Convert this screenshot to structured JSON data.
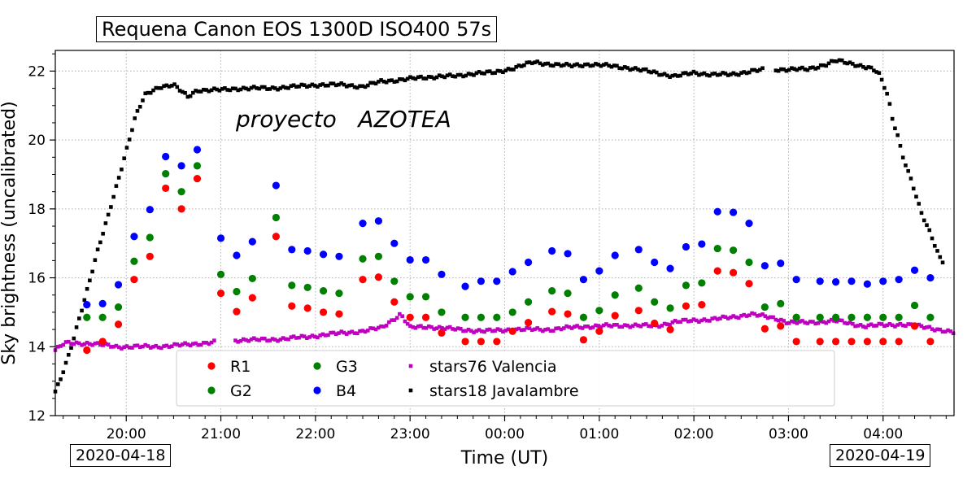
{
  "title": "Requena  Canon EOS 1300D  ISO400 57s",
  "watermark": "proyecto   AZOTEA",
  "date_start": "2020-04-18",
  "date_end": "2020-04-19",
  "chart_data": {
    "type": "scatter",
    "xlabel": "Time (UT)",
    "ylabel": "Sky brightness (uncalibrated)",
    "x_unit": "hours UT (values ≥ 24 are on 2020-04-19)",
    "xlim": [
      19.25,
      28.75
    ],
    "ylim": [
      12,
      22.6
    ],
    "x_ticks": [
      20,
      21,
      22,
      23,
      24,
      25,
      26,
      27,
      28
    ],
    "x_tick_labels": [
      "20:00",
      "21:00",
      "22:00",
      "23:00",
      "00:00",
      "01:00",
      "02:00",
      "03:00",
      "04:00"
    ],
    "y_ticks": [
      12,
      14,
      16,
      18,
      20,
      22
    ],
    "grid": true,
    "legend_position": "lower-center",
    "legend_columns": 4,
    "colors": {
      "R1": "#ff0000",
      "G2": "#008000",
      "G3": "#008000",
      "B4": "#0000ff",
      "stars76": "#c000c0",
      "stars18": "#000000"
    },
    "camera_times": [
      "19:35",
      "19:45",
      "19:55",
      "20:05",
      "20:15",
      "20:25",
      "20:35",
      "20:45",
      "21:00",
      "21:10",
      "21:20",
      "21:35",
      "21:45",
      "21:55",
      "22:05",
      "22:15",
      "22:30",
      "22:40",
      "22:50",
      "23:00",
      "23:10",
      "23:20",
      "23:35",
      "23:45",
      "23:55",
      "24:05",
      "24:15",
      "24:30",
      "24:40",
      "24:50",
      "25:00",
      "25:10",
      "25:25",
      "25:35",
      "25:45",
      "25:55",
      "26:05",
      "26:15",
      "26:25",
      "26:35",
      "26:45",
      "26:55",
      "27:05",
      "27:20",
      "27:30",
      "27:40",
      "27:50",
      "28:00",
      "28:10",
      "28:20",
      "28:30"
    ],
    "series": [
      {
        "name": "R1",
        "marker": "circle",
        "values": [
          13.9,
          14.15,
          14.65,
          15.95,
          16.62,
          18.6,
          18.0,
          18.88,
          15.55,
          15.02,
          15.42,
          17.2,
          15.18,
          15.12,
          15.0,
          14.95,
          15.95,
          16.02,
          15.3,
          14.85,
          14.85,
          14.4,
          14.15,
          14.15,
          14.15,
          14.45,
          14.7,
          15.02,
          14.95,
          14.2,
          14.45,
          14.9,
          15.05,
          14.68,
          14.5,
          15.18,
          15.22,
          16.2,
          16.15,
          15.83,
          14.52,
          14.6,
          14.15,
          14.15,
          14.15,
          14.15,
          14.15,
          14.15,
          14.15,
          14.6,
          14.15
        ]
      },
      {
        "name": "G2",
        "marker": "circle",
        "values": [
          14.85,
          14.85,
          15.15,
          16.48,
          17.17,
          19.02,
          18.5,
          19.25,
          16.1,
          15.6,
          15.98,
          17.75,
          15.78,
          15.72,
          15.62,
          15.55,
          16.55,
          16.62,
          15.9,
          15.45,
          15.45,
          15.0,
          14.85,
          14.85,
          14.85,
          15.0,
          15.3,
          15.62,
          15.55,
          14.85,
          15.05,
          15.5,
          15.7,
          15.3,
          15.12,
          15.78,
          15.85,
          16.85,
          16.8,
          16.45,
          15.15,
          15.25,
          14.85,
          14.85,
          14.85,
          14.85,
          14.85,
          14.85,
          14.85,
          15.2,
          14.85
        ]
      },
      {
        "name": "G3",
        "marker": "circle",
        "values": []
      },
      {
        "name": "B4",
        "marker": "circle",
        "values": [
          15.22,
          15.25,
          15.8,
          17.2,
          17.98,
          19.52,
          19.25,
          19.72,
          17.15,
          16.65,
          17.05,
          18.68,
          16.82,
          16.78,
          16.68,
          16.62,
          17.58,
          17.65,
          17.0,
          16.52,
          16.52,
          16.1,
          15.75,
          15.9,
          15.9,
          16.18,
          16.45,
          16.78,
          16.7,
          15.95,
          16.2,
          16.65,
          16.82,
          16.45,
          16.27,
          16.9,
          16.98,
          17.92,
          17.9,
          17.58,
          16.35,
          16.42,
          15.95,
          15.9,
          15.88,
          15.9,
          15.82,
          15.9,
          15.95,
          16.22,
          16.0
        ]
      },
      {
        "name": "stars76 Valencia",
        "marker": "square",
        "curve": [
          [
            19.25,
            13.9
          ],
          [
            19.35,
            14.1
          ],
          [
            19.6,
            14.1
          ],
          [
            19.9,
            14.0
          ],
          [
            20.3,
            14.0
          ],
          [
            20.6,
            14.05
          ],
          [
            20.8,
            14.1
          ],
          [
            21.0,
            14.15
          ],
          [
            21.1,
            14.15
          ],
          [
            21.2,
            14.2
          ],
          [
            21.5,
            14.2
          ],
          [
            21.9,
            14.28
          ],
          [
            22.1,
            14.35
          ],
          [
            22.5,
            14.45
          ],
          [
            22.7,
            14.55
          ],
          [
            22.9,
            14.95
          ],
          [
            22.95,
            14.75
          ],
          [
            23.0,
            14.55
          ],
          [
            23.2,
            14.58
          ],
          [
            23.5,
            14.5
          ],
          [
            23.8,
            14.45
          ],
          [
            24.1,
            14.5
          ],
          [
            24.5,
            14.5
          ],
          [
            24.8,
            14.58
          ],
          [
            25.3,
            14.62
          ],
          [
            25.6,
            14.6
          ],
          [
            25.8,
            14.72
          ],
          [
            26.2,
            14.8
          ],
          [
            26.4,
            14.85
          ],
          [
            26.6,
            14.95
          ],
          [
            26.9,
            14.8
          ],
          [
            27.0,
            14.7
          ],
          [
            27.2,
            14.7
          ],
          [
            27.5,
            14.75
          ],
          [
            27.8,
            14.6
          ],
          [
            28.2,
            14.65
          ],
          [
            28.5,
            14.55
          ],
          [
            28.75,
            14.4
          ]
        ],
        "gap": [
          20.95,
          21.15
        ]
      },
      {
        "name": "stars18 Javalambre",
        "marker": "square",
        "curve": [
          [
            19.25,
            12.7
          ],
          [
            19.3,
            13.0
          ],
          [
            19.4,
            13.8
          ],
          [
            19.5,
            14.8
          ],
          [
            19.6,
            15.8
          ],
          [
            19.7,
            16.8
          ],
          [
            19.8,
            17.7
          ],
          [
            19.9,
            18.7
          ],
          [
            20.0,
            19.7
          ],
          [
            20.1,
            20.7
          ],
          [
            20.2,
            21.3
          ],
          [
            20.35,
            21.55
          ],
          [
            20.5,
            21.6
          ],
          [
            20.65,
            21.25
          ],
          [
            20.75,
            21.45
          ],
          [
            21.0,
            21.45
          ],
          [
            21.2,
            21.5
          ],
          [
            21.5,
            21.5
          ],
          [
            21.8,
            21.55
          ],
          [
            22.0,
            21.6
          ],
          [
            22.3,
            21.6
          ],
          [
            22.5,
            21.55
          ],
          [
            22.7,
            21.7
          ],
          [
            22.9,
            21.75
          ],
          [
            23.1,
            21.8
          ],
          [
            23.3,
            21.85
          ],
          [
            23.5,
            21.85
          ],
          [
            23.7,
            21.95
          ],
          [
            23.9,
            21.95
          ],
          [
            24.1,
            22.1
          ],
          [
            24.3,
            22.25
          ],
          [
            24.5,
            22.2
          ],
          [
            24.7,
            22.15
          ],
          [
            24.9,
            22.2
          ],
          [
            25.1,
            22.15
          ],
          [
            25.3,
            22.1
          ],
          [
            25.6,
            21.95
          ],
          [
            25.8,
            21.85
          ],
          [
            26.0,
            21.95
          ],
          [
            26.2,
            21.9
          ],
          [
            26.4,
            21.9
          ],
          [
            26.6,
            22.0
          ],
          [
            26.8,
            22.05
          ],
          [
            27.0,
            22.05
          ],
          [
            27.2,
            22.05
          ],
          [
            27.4,
            22.2
          ],
          [
            27.5,
            22.3
          ],
          [
            27.7,
            22.2
          ],
          [
            27.85,
            22.1
          ],
          [
            27.95,
            21.95
          ],
          [
            28.05,
            21.3
          ],
          [
            28.1,
            20.6
          ],
          [
            28.15,
            20.2
          ],
          [
            28.2,
            19.6
          ],
          [
            28.3,
            18.8
          ],
          [
            28.4,
            17.9
          ],
          [
            28.5,
            17.3
          ],
          [
            28.6,
            16.6
          ],
          [
            28.65,
            16.4
          ]
        ],
        "gap": [
          26.75,
          26.85
        ]
      }
    ],
    "legend": [
      {
        "label": "R1",
        "color": "#ff0000",
        "marker": "circle"
      },
      {
        "label": "G2",
        "color": "#008000",
        "marker": "circle"
      },
      {
        "label": "G3",
        "color": "#008000",
        "marker": "circle"
      },
      {
        "label": "B4",
        "color": "#0000ff",
        "marker": "circle"
      },
      {
        "label": "stars76 Valencia",
        "color": "#c000c0",
        "marker": "square"
      },
      {
        "label": "stars18 Javalambre",
        "color": "#000000",
        "marker": "square"
      }
    ]
  }
}
